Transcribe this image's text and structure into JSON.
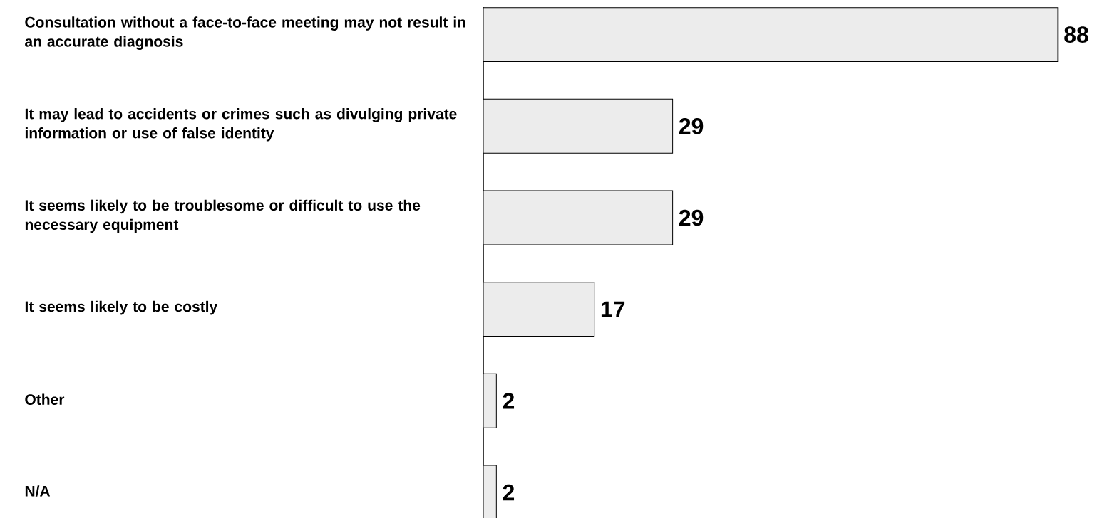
{
  "chart_data": {
    "type": "bar",
    "orientation": "horizontal",
    "categories": [
      "Consultation without a face-to-face meeting may not result in an accurate diagnosis",
      "It may lead to accidents or crimes such as divulging private information or use of false identity",
      "It seems likely to be troublesome or difficult to use the necessary equipment",
      "It seems likely to be costly",
      "Other",
      "N/A"
    ],
    "values": [
      88,
      29,
      29,
      17,
      2,
      2
    ],
    "color": "#ececec",
    "data_labels": true
  }
}
